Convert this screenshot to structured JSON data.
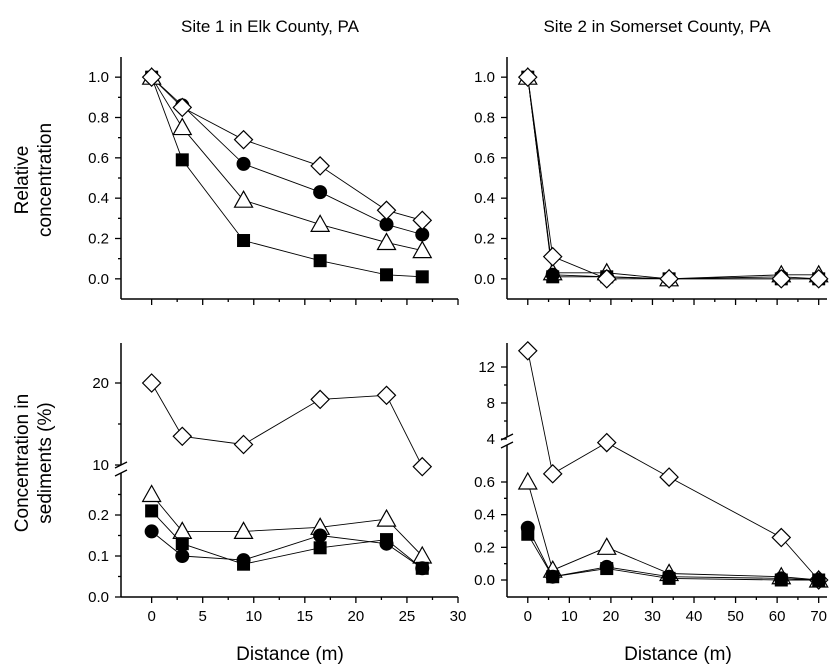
{
  "chart_data": [
    {
      "type": "line",
      "title": "Site 1 in Elk County, PA",
      "ylabel": "Relative concentration",
      "xlabel": "",
      "xlim": [
        -3,
        30
      ],
      "ylim": [
        -0.1,
        1.1
      ],
      "yticks": [
        "0.0",
        "0.2",
        "0.4",
        "0.6",
        "0.8",
        "1.0"
      ],
      "xticks": [],
      "series": [
        {
          "marker": "diamond-open",
          "x": [
            0,
            3,
            9,
            16.5,
            23,
            26.5
          ],
          "y": [
            1.0,
            0.85,
            0.69,
            0.56,
            0.34,
            0.29
          ]
        },
        {
          "marker": "circle-filled",
          "x": [
            0,
            3,
            9,
            16.5,
            23,
            26.5
          ],
          "y": [
            1.0,
            0.86,
            0.57,
            0.43,
            0.27,
            0.22
          ]
        },
        {
          "marker": "triangle-open",
          "x": [
            0,
            3,
            9,
            16.5,
            23,
            26.5
          ],
          "y": [
            1.0,
            0.75,
            0.39,
            0.27,
            0.18,
            0.14
          ]
        },
        {
          "marker": "square-filled",
          "x": [
            0,
            3,
            9,
            16.5,
            23,
            26.5
          ],
          "y": [
            1.0,
            0.59,
            0.19,
            0.09,
            0.02,
            0.01
          ]
        }
      ]
    },
    {
      "type": "line",
      "title": "Site 2 in Somerset County, PA",
      "ylabel": "",
      "xlabel": "",
      "xlim": [
        -5,
        72
      ],
      "ylim": [
        -0.1,
        1.1
      ],
      "yticks": [
        "0.0",
        "0.2",
        "0.4",
        "0.6",
        "0.8",
        "1.0"
      ],
      "xticks": [],
      "series": [
        {
          "marker": "diamond-open",
          "x": [
            0,
            6,
            19,
            34,
            61,
            70
          ],
          "y": [
            1.0,
            0.11,
            0.0,
            0.0,
            0.0,
            0.0
          ]
        },
        {
          "marker": "circle-filled",
          "x": [
            0,
            6,
            19,
            34,
            61,
            70
          ],
          "y": [
            1.0,
            0.02,
            0.01,
            0.0,
            0.01,
            0.0
          ]
        },
        {
          "marker": "triangle-open",
          "x": [
            0,
            6,
            19,
            34,
            61,
            70
          ],
          "y": [
            1.0,
            0.03,
            0.03,
            0.0,
            0.02,
            0.02
          ]
        },
        {
          "marker": "square-filled",
          "x": [
            0,
            6,
            19,
            34,
            61,
            70
          ],
          "y": [
            1.0,
            0.01,
            0.01,
            0.0,
            0.0,
            0.0
          ]
        }
      ]
    },
    {
      "type": "line",
      "title": "",
      "ylabel": "Concentration in sediments (%)",
      "xlabel": "Distance (m)",
      "xlim": [
        -3,
        30
      ],
      "axis_break": true,
      "lower_ylim": [
        0,
        0.3
      ],
      "upper_ylim": [
        10,
        25
      ],
      "yticks_lower": [
        "0.0",
        "0.1",
        "0.2"
      ],
      "yticks_upper": [
        "10",
        "20"
      ],
      "xticks": [
        "0",
        "5",
        "10",
        "15",
        "20",
        "25",
        "30"
      ],
      "series": [
        {
          "marker": "diamond-open",
          "x": [
            0,
            3,
            9,
            16.5,
            23,
            26.5
          ],
          "y": [
            20,
            13.5,
            12.5,
            18,
            18.5,
            9.8
          ]
        },
        {
          "marker": "triangle-open",
          "x": [
            0,
            3,
            9,
            16.5,
            23,
            26.5
          ],
          "y": [
            0.25,
            0.16,
            0.16,
            0.17,
            0.19,
            0.1
          ]
        },
        {
          "marker": "circle-filled",
          "x": [
            0,
            3,
            9,
            16.5,
            23,
            26.5
          ],
          "y": [
            0.16,
            0.1,
            0.09,
            0.15,
            0.13,
            0.07
          ]
        },
        {
          "marker": "square-filled",
          "x": [
            0,
            3,
            9,
            16.5,
            23,
            26.5
          ],
          "y": [
            0.21,
            0.13,
            0.08,
            0.12,
            0.14,
            0.07
          ]
        }
      ]
    },
    {
      "type": "line",
      "title": "",
      "ylabel": "",
      "xlabel": "Distance (m)",
      "xlim": [
        -5,
        72
      ],
      "axis_break": true,
      "lower_ylim": [
        -0.05,
        0.7
      ],
      "upper_ylim": [
        1,
        15
      ],
      "yticks_lower": [
        "0.0",
        "0.2",
        "0.4",
        "0.6"
      ],
      "yticks_upper": [
        "4",
        "8",
        "12"
      ],
      "xticks": [
        "0",
        "10",
        "20",
        "30",
        "40",
        "50",
        "60",
        "70"
      ],
      "series": [
        {
          "marker": "diamond-open",
          "x": [
            0,
            6,
            19,
            34,
            61,
            70
          ],
          "y": [
            13.8,
            0.65,
            3.6,
            0.63,
            0.26,
            0.0
          ],
          "upper_flags": [
            true,
            false,
            true,
            false,
            false,
            false
          ]
        },
        {
          "marker": "triangle-open",
          "x": [
            0,
            6,
            19,
            34,
            61,
            70
          ],
          "y": [
            0.6,
            0.06,
            0.2,
            0.04,
            0.02,
            0.0
          ]
        },
        {
          "marker": "circle-filled",
          "x": [
            0,
            6,
            19,
            34,
            61,
            70
          ],
          "y": [
            0.32,
            0.02,
            0.08,
            0.02,
            0.01,
            0.0
          ]
        },
        {
          "marker": "square-filled",
          "x": [
            0,
            6,
            19,
            34,
            61,
            70
          ],
          "y": [
            0.28,
            0.02,
            0.07,
            0.01,
            0.0,
            0.0
          ]
        }
      ]
    }
  ]
}
